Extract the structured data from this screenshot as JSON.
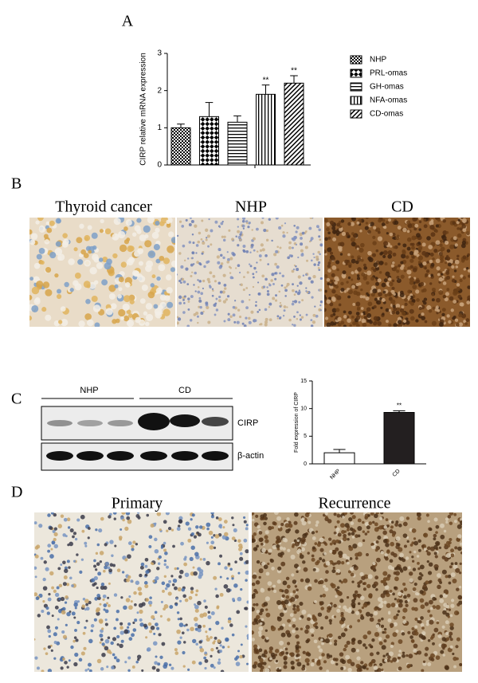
{
  "panels": {
    "labels": [
      "A",
      "B",
      "C",
      "D"
    ],
    "b_captions": [
      "Thyroid cancer",
      "NHP",
      "CD"
    ],
    "c_blot": {
      "groups": [
        "NHP",
        "CD"
      ],
      "rows": [
        "CIRP",
        "β-actin"
      ]
    },
    "d_captions": [
      "Primary",
      "Recurrence"
    ]
  },
  "chart_data": [
    {
      "type": "bar",
      "ylabel": "CIRP relative mRNA expression",
      "categories": [
        "NHP",
        "PRL-omas",
        "GH-omas",
        "NFA-omas",
        "CD-omas"
      ],
      "values": [
        1.0,
        1.3,
        1.15,
        1.9,
        2.2
      ],
      "errors": [
        0.1,
        0.38,
        0.17,
        0.25,
        0.2
      ],
      "annotations": [
        null,
        null,
        null,
        "**",
        "**"
      ],
      "patterns": [
        "checker",
        "check-large",
        "horizontal",
        "vertical",
        "diagonal"
      ],
      "ylim": [
        0,
        3
      ],
      "yticks": [
        0,
        1,
        2,
        3
      ],
      "legend": "right"
    },
    {
      "type": "bar",
      "ylabel": "Fold expression of CIRP",
      "categories": [
        "NHP",
        "CD"
      ],
      "values": [
        2.0,
        9.3
      ],
      "errors": [
        0.6,
        0.3
      ],
      "annotations": [
        null,
        "**"
      ],
      "colors": [
        "#ffffff",
        "#231f20"
      ],
      "ylim": [
        0,
        15
      ],
      "yticks": [
        0,
        5,
        10,
        15
      ]
    }
  ]
}
